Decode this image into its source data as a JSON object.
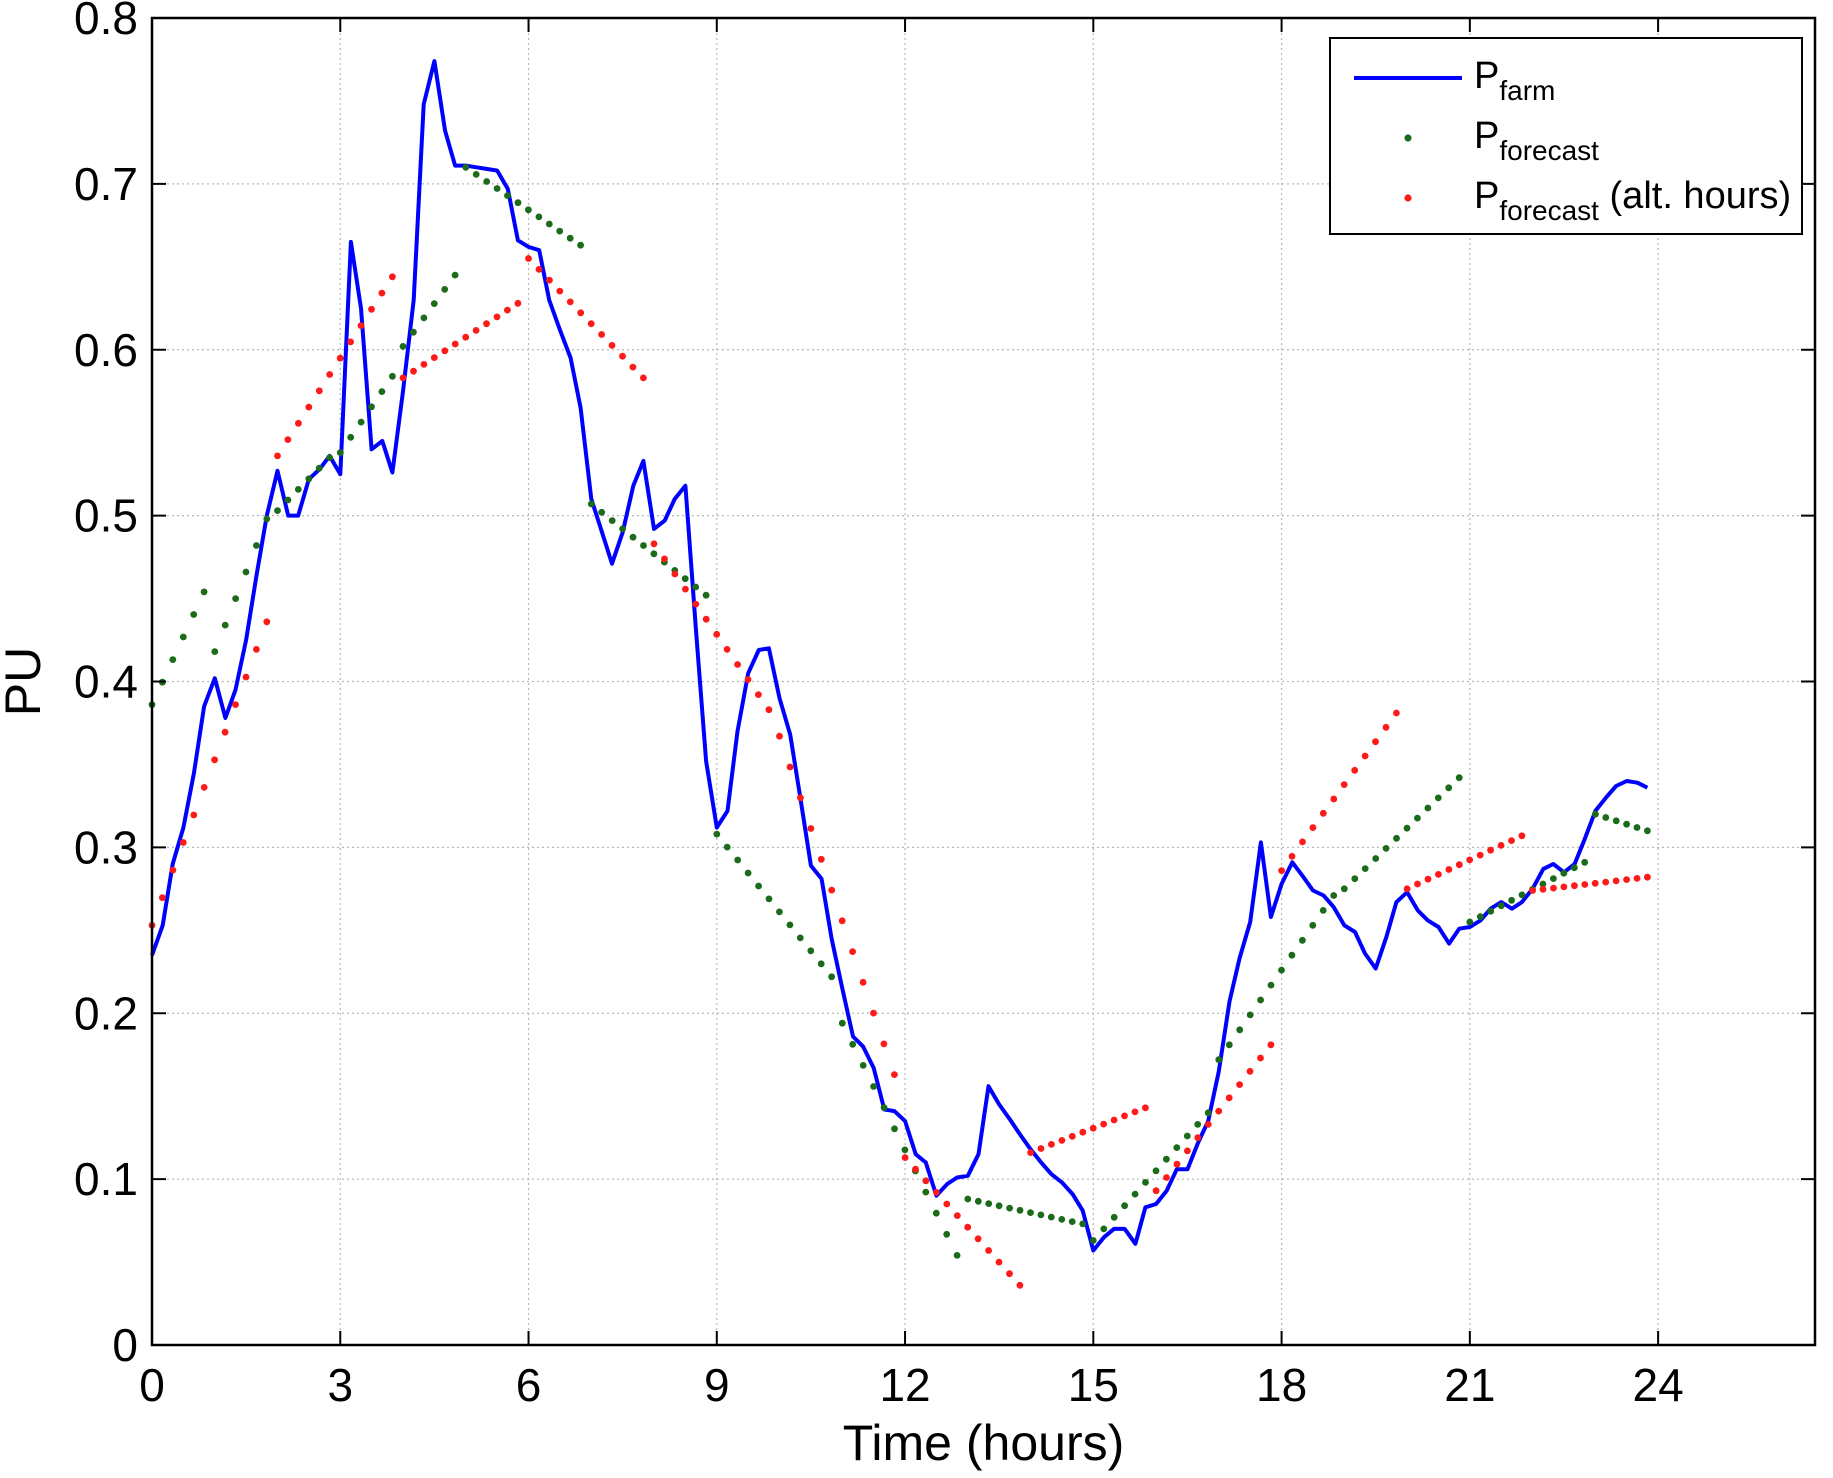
{
  "chart_data": {
    "type": "line",
    "xlabel": "Time (hours)",
    "ylabel": "PU",
    "xlim": [
      0,
      26.5
    ],
    "ylim": [
      0,
      0.8
    ],
    "xticks": [
      0,
      3,
      6,
      9,
      12,
      15,
      18,
      21,
      24
    ],
    "xtick_labels": [
      "0",
      "3",
      "6",
      "9",
      "12",
      "15",
      "18",
      "21",
      "24"
    ],
    "yticks": [
      0,
      0.1,
      0.2,
      0.3,
      0.4,
      0.5,
      0.6,
      0.7,
      0.8
    ],
    "ytick_labels": [
      "0",
      "0.1",
      "0.2",
      "0.3",
      "0.4",
      "0.5",
      "0.6",
      "0.7",
      "0.8"
    ],
    "grid": true,
    "legend_position": "top-right",
    "series": [
      {
        "name": "P",
        "name_sub": "farm",
        "name_suffix": "",
        "style": "line",
        "color": "#0000ff",
        "points": [
          [
            0.0,
            0.235
          ],
          [
            0.17,
            0.253
          ],
          [
            0.33,
            0.29
          ],
          [
            0.5,
            0.312
          ],
          [
            0.67,
            0.345
          ],
          [
            0.83,
            0.385
          ],
          [
            1.0,
            0.402
          ],
          [
            1.17,
            0.378
          ],
          [
            1.33,
            0.395
          ],
          [
            1.5,
            0.425
          ],
          [
            1.67,
            0.465
          ],
          [
            1.83,
            0.5
          ],
          [
            2.0,
            0.527
          ],
          [
            2.17,
            0.5
          ],
          [
            2.33,
            0.5
          ],
          [
            2.5,
            0.522
          ],
          [
            2.67,
            0.528
          ],
          [
            2.83,
            0.536
          ],
          [
            3.0,
            0.525
          ],
          [
            3.17,
            0.665
          ],
          [
            3.33,
            0.625
          ],
          [
            3.5,
            0.54
          ],
          [
            3.67,
            0.545
          ],
          [
            3.83,
            0.526
          ],
          [
            4.0,
            0.575
          ],
          [
            4.17,
            0.63
          ],
          [
            4.33,
            0.748
          ],
          [
            4.5,
            0.774
          ],
          [
            4.67,
            0.732
          ],
          [
            4.83,
            0.711
          ],
          [
            5.0,
            0.711
          ],
          [
            5.17,
            0.71
          ],
          [
            5.33,
            0.709
          ],
          [
            5.5,
            0.708
          ],
          [
            5.67,
            0.697
          ],
          [
            5.83,
            0.666
          ],
          [
            6.0,
            0.662
          ],
          [
            6.17,
            0.66
          ],
          [
            6.33,
            0.63
          ],
          [
            6.5,
            0.612
          ],
          [
            6.67,
            0.595
          ],
          [
            6.83,
            0.565
          ],
          [
            7.0,
            0.51
          ],
          [
            7.17,
            0.49
          ],
          [
            7.33,
            0.471
          ],
          [
            7.5,
            0.49
          ],
          [
            7.67,
            0.518
          ],
          [
            7.83,
            0.533
          ],
          [
            8.0,
            0.492
          ],
          [
            8.17,
            0.497
          ],
          [
            8.33,
            0.51
          ],
          [
            8.5,
            0.518
          ],
          [
            8.67,
            0.43
          ],
          [
            8.83,
            0.352
          ],
          [
            9.0,
            0.312
          ],
          [
            9.17,
            0.322
          ],
          [
            9.33,
            0.37
          ],
          [
            9.5,
            0.405
          ],
          [
            9.67,
            0.419
          ],
          [
            9.83,
            0.42
          ],
          [
            10.0,
            0.39
          ],
          [
            10.17,
            0.368
          ],
          [
            10.33,
            0.33
          ],
          [
            10.5,
            0.289
          ],
          [
            10.67,
            0.281
          ],
          [
            10.83,
            0.245
          ],
          [
            11.0,
            0.215
          ],
          [
            11.17,
            0.186
          ],
          [
            11.33,
            0.18
          ],
          [
            11.5,
            0.167
          ],
          [
            11.67,
            0.142
          ],
          [
            11.83,
            0.141
          ],
          [
            12.0,
            0.135
          ],
          [
            12.17,
            0.115
          ],
          [
            12.33,
            0.11
          ],
          [
            12.5,
            0.09
          ],
          [
            12.67,
            0.097
          ],
          [
            12.83,
            0.101
          ],
          [
            13.0,
            0.102
          ],
          [
            13.17,
            0.115
          ],
          [
            13.33,
            0.156
          ],
          [
            13.5,
            0.145
          ],
          [
            13.67,
            0.136
          ],
          [
            13.83,
            0.127
          ],
          [
            14.0,
            0.118
          ],
          [
            14.17,
            0.11
          ],
          [
            14.33,
            0.103
          ],
          [
            14.5,
            0.098
          ],
          [
            14.67,
            0.091
          ],
          [
            14.83,
            0.081
          ],
          [
            15.0,
            0.057
          ],
          [
            15.17,
            0.065
          ],
          [
            15.33,
            0.07
          ],
          [
            15.5,
            0.07
          ],
          [
            15.67,
            0.061
          ],
          [
            15.83,
            0.083
          ],
          [
            16.0,
            0.085
          ],
          [
            16.17,
            0.093
          ],
          [
            16.33,
            0.106
          ],
          [
            16.5,
            0.106
          ],
          [
            16.67,
            0.122
          ],
          [
            16.83,
            0.135
          ],
          [
            17.0,
            0.165
          ],
          [
            17.17,
            0.207
          ],
          [
            17.33,
            0.233
          ],
          [
            17.5,
            0.255
          ],
          [
            17.67,
            0.303
          ],
          [
            17.83,
            0.258
          ],
          [
            18.0,
            0.278
          ],
          [
            18.17,
            0.291
          ],
          [
            18.33,
            0.283
          ],
          [
            18.5,
            0.274
          ],
          [
            18.67,
            0.271
          ],
          [
            18.83,
            0.264
          ],
          [
            19.0,
            0.253
          ],
          [
            19.17,
            0.249
          ],
          [
            19.33,
            0.236
          ],
          [
            19.5,
            0.227
          ],
          [
            19.67,
            0.246
          ],
          [
            19.83,
            0.267
          ],
          [
            20.0,
            0.273
          ],
          [
            20.17,
            0.262
          ],
          [
            20.33,
            0.256
          ],
          [
            20.5,
            0.252
          ],
          [
            20.67,
            0.242
          ],
          [
            20.83,
            0.251
          ],
          [
            21.0,
            0.252
          ],
          [
            21.17,
            0.256
          ],
          [
            21.33,
            0.263
          ],
          [
            21.5,
            0.267
          ],
          [
            21.67,
            0.263
          ],
          [
            21.83,
            0.267
          ],
          [
            22.0,
            0.275
          ],
          [
            22.17,
            0.287
          ],
          [
            22.33,
            0.29
          ],
          [
            22.5,
            0.285
          ],
          [
            22.67,
            0.29
          ],
          [
            22.83,
            0.305
          ],
          [
            23.0,
            0.322
          ],
          [
            23.17,
            0.33
          ],
          [
            23.33,
            0.337
          ],
          [
            23.5,
            0.34
          ],
          [
            23.67,
            0.339
          ],
          [
            23.83,
            0.336
          ]
        ]
      },
      {
        "name": "P",
        "name_sub": "forecast",
        "name_suffix": "",
        "style": "dots",
        "color": "#1b6b1b",
        "segments": [
          {
            "x0": 0.0,
            "x1": 0.83,
            "y0": 0.386,
            "y1": 0.454
          },
          {
            "x0": 1.0,
            "x1": 1.83,
            "y0": 0.418,
            "y1": 0.498
          },
          {
            "x0": 2.0,
            "x1": 2.83,
            "y0": 0.503,
            "y1": 0.535
          },
          {
            "x0": 3.0,
            "x1": 3.83,
            "y0": 0.538,
            "y1": 0.584
          },
          {
            "x0": 4.0,
            "x1": 4.83,
            "y0": 0.602,
            "y1": 0.645
          },
          {
            "x0": 5.0,
            "x1": 6.83,
            "y0": 0.71,
            "y1": 0.663
          },
          {
            "x0": 7.0,
            "x1": 8.83,
            "y0": 0.507,
            "y1": 0.452
          },
          {
            "x0": 9.0,
            "x1": 10.83,
            "y0": 0.308,
            "y1": 0.222
          },
          {
            "x0": 11.0,
            "x1": 12.83,
            "y0": 0.194,
            "y1": 0.054
          },
          {
            "x0": 13.0,
            "x1": 14.83,
            "y0": 0.088,
            "y1": 0.073
          },
          {
            "x0": 15.0,
            "x1": 16.83,
            "y0": 0.063,
            "y1": 0.14
          },
          {
            "x0": 17.0,
            "x1": 18.83,
            "y0": 0.172,
            "y1": 0.271
          },
          {
            "x0": 19.0,
            "x1": 20.83,
            "y0": 0.275,
            "y1": 0.342
          },
          {
            "x0": 21.0,
            "x1": 22.83,
            "y0": 0.255,
            "y1": 0.291
          },
          {
            "x0": 23.0,
            "x1": 23.83,
            "y0": 0.32,
            "y1": 0.31
          }
        ]
      },
      {
        "name": "P",
        "name_sub": "forecast",
        "name_suffix": " (alt. hours)",
        "style": "dots",
        "color": "#ff1a1a",
        "segments": [
          {
            "x0": 0.0,
            "x1": 1.83,
            "y0": 0.253,
            "y1": 0.436
          },
          {
            "x0": 2.0,
            "x1": 3.83,
            "y0": 0.536,
            "y1": 0.644
          },
          {
            "x0": 4.0,
            "x1": 5.83,
            "y0": 0.583,
            "y1": 0.628
          },
          {
            "x0": 6.0,
            "x1": 7.83,
            "y0": 0.655,
            "y1": 0.583
          },
          {
            "x0": 8.0,
            "x1": 9.83,
            "y0": 0.483,
            "y1": 0.383
          },
          {
            "x0": 10.0,
            "x1": 11.83,
            "y0": 0.367,
            "y1": 0.163
          },
          {
            "x0": 12.0,
            "x1": 13.83,
            "y0": 0.113,
            "y1": 0.036
          },
          {
            "x0": 14.0,
            "x1": 15.83,
            "y0": 0.116,
            "y1": 0.143
          },
          {
            "x0": 16.0,
            "x1": 17.83,
            "y0": 0.093,
            "y1": 0.181
          },
          {
            "x0": 18.0,
            "x1": 19.83,
            "y0": 0.286,
            "y1": 0.381
          },
          {
            "x0": 20.0,
            "x1": 21.83,
            "y0": 0.275,
            "y1": 0.307
          },
          {
            "x0": 22.0,
            "x1": 23.83,
            "y0": 0.274,
            "y1": 0.282
          }
        ]
      }
    ]
  }
}
